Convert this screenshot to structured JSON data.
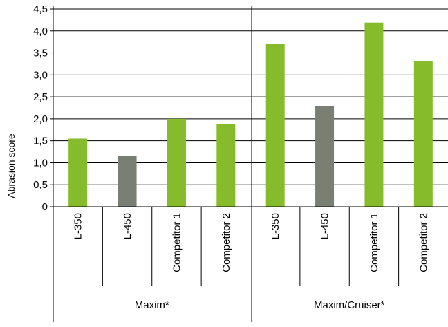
{
  "chart_data": {
    "type": "bar",
    "ylabel": "Abrasion score",
    "ylim": [
      0,
      4.5
    ],
    "yticks": [
      "0",
      "0,5",
      "1,0",
      "1,5",
      "2,0",
      "2,5",
      "3,0",
      "3,5",
      "4,0",
      "4,5"
    ],
    "grid": true,
    "groups": [
      {
        "label": "Maxim*",
        "categories": [
          "L-350",
          "L-450",
          "Competitor 1",
          "Competitor 2"
        ],
        "values": [
          1.55,
          1.16,
          2.0,
          1.88
        ]
      },
      {
        "label": "Maxim/Cruiser*",
        "categories": [
          "L-350",
          "L-450",
          "Competitor 1",
          "Competitor 2"
        ],
        "values": [
          3.71,
          2.29,
          4.19,
          3.32
        ]
      }
    ],
    "colors": {
      "green": "#86bc2b",
      "gray": "#7a7f74"
    },
    "bar_colors": [
      "green",
      "gray",
      "green",
      "green"
    ]
  }
}
